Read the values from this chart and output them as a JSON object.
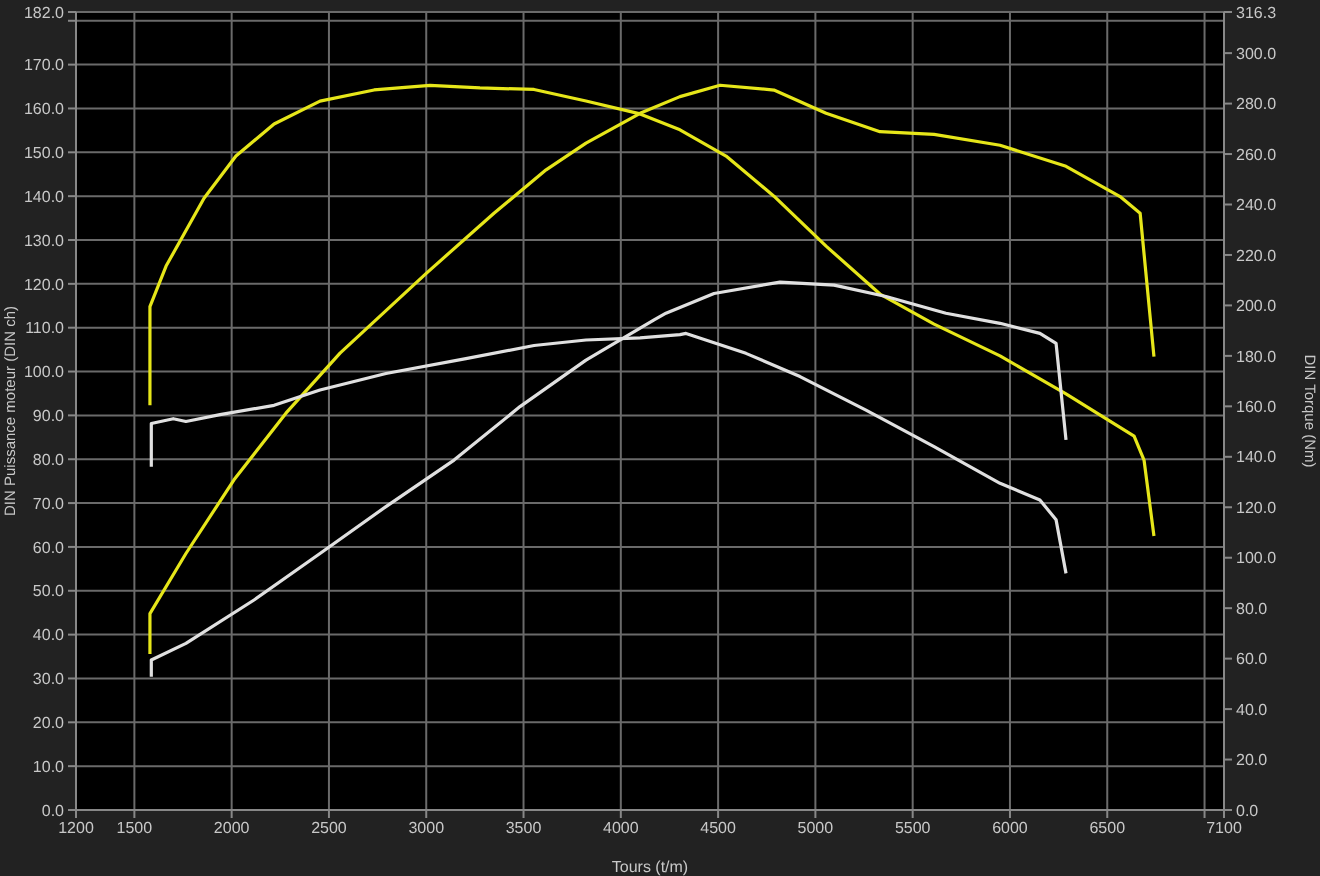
{
  "chart_data": {
    "type": "line",
    "xlabel": "Tours (t/m)",
    "ylabel": "DIN Puissance moteur (DIN ch)",
    "y2label": "DIN Torque (Nm)",
    "xlim": [
      1200,
      7100
    ],
    "xticks": [
      1200,
      1500,
      2000,
      2500,
      3000,
      3500,
      4000,
      4500,
      5000,
      5500,
      6000,
      6500,
      {
        "value": 7000,
        "label": null
      },
      7100
    ],
    "ylim": [
      0,
      182
    ],
    "yticks": [
      {
        "value": 0,
        "label": "0.0"
      },
      {
        "value": 10,
        "label": "10.0"
      },
      {
        "value": 20,
        "label": "20.0"
      },
      {
        "value": 30,
        "label": "30.0"
      },
      {
        "value": 40,
        "label": "40.0"
      },
      {
        "value": 50,
        "label": "50.0"
      },
      {
        "value": 60,
        "label": "60.0"
      },
      {
        "value": 70,
        "label": "70.0"
      },
      {
        "value": 80,
        "label": "80.0"
      },
      {
        "value": 90,
        "label": "90.0"
      },
      {
        "value": 100,
        "label": "100.0"
      },
      {
        "value": 110,
        "label": "110.0"
      },
      {
        "value": 120,
        "label": "120.0"
      },
      {
        "value": 130,
        "label": "130.0"
      },
      {
        "value": 140,
        "label": "140.0"
      },
      {
        "value": 150,
        "label": "150.0"
      },
      {
        "value": 160,
        "label": "160.0"
      },
      {
        "value": 170,
        "label": "170.0"
      },
      {
        "value": 180,
        "label": null
      },
      {
        "value": 182,
        "label": "182.0"
      }
    ],
    "y2lim": [
      0,
      316.3
    ],
    "y2ticks": [
      {
        "value": 0,
        "label": "0.0"
      },
      {
        "value": 20,
        "label": "20.0"
      },
      {
        "value": 40,
        "label": "40.0"
      },
      {
        "value": 60,
        "label": "60.0"
      },
      {
        "value": 80,
        "label": "80.0"
      },
      {
        "value": 100,
        "label": "100.0"
      },
      {
        "value": 120,
        "label": "120.0"
      },
      {
        "value": 140,
        "label": "140.0"
      },
      {
        "value": 160,
        "label": "160.0"
      },
      {
        "value": 180,
        "label": "180.0"
      },
      {
        "value": 200,
        "label": "200.0"
      },
      {
        "value": 220,
        "label": "220.0"
      },
      {
        "value": 240,
        "label": "240.0"
      },
      {
        "value": 260,
        "label": "260.0"
      },
      {
        "value": 280,
        "label": "280.0"
      },
      {
        "value": 300,
        "label": "300.0"
      },
      {
        "value": 316.3,
        "label": "316.3"
      }
    ],
    "grid": true,
    "series": [
      {
        "color": "#e6e619",
        "x": [
          1580,
          1580,
          1765,
          2012,
          2279,
          2557,
          3000,
          3348,
          3616,
          3821,
          4099,
          4304,
          4510,
          4787,
          5055,
          5332,
          5610,
          5949,
          6288,
          6566,
          6669,
          6740
        ],
        "values": [
          35.6,
          44.8,
          58.5,
          75.3,
          90.5,
          104.2,
          122.4,
          136.1,
          146,
          152.1,
          158.9,
          162.7,
          165.3,
          164.2,
          158.9,
          154.7,
          154.1,
          151.6,
          146.8,
          139.9,
          136.1,
          103.4
        ]
      },
      {
        "color": "#e6e619",
        "axis": "y2",
        "x": [
          1580,
          1580,
          1663,
          1858,
          2022,
          2218,
          2454,
          2732,
          3019,
          3276,
          3554,
          3821,
          4099,
          4304,
          4541,
          4787,
          5055,
          5332,
          5610,
          5949,
          6288,
          6638,
          6689,
          6740
        ],
        "values": [
          160.4,
          199.5,
          215.6,
          242.5,
          259.2,
          271.9,
          281,
          285.4,
          287.2,
          286.2,
          285.6,
          281,
          275.9,
          269.6,
          259.2,
          243.3,
          223.5,
          204.5,
          192.6,
          180,
          164.9,
          148.2,
          138.7,
          108.6
        ]
      },
      {
        "color": "#e0e0e0",
        "x": [
          1587,
          1587,
          1765,
          2115,
          2454,
          2793,
          3143,
          3482,
          3821,
          4171,
          4232,
          4479,
          4818,
          5096,
          5363,
          5671,
          5949,
          6154,
          6237,
          6288
        ],
        "values": [
          30.4,
          34.2,
          38,
          47.9,
          58.5,
          69.2,
          79.8,
          92,
          102.6,
          111.8,
          113.3,
          117.8,
          120.4,
          119.7,
          117.1,
          113.3,
          111,
          108.7,
          106.4,
          84.4
        ]
      },
      {
        "color": "#e0e0e0",
        "axis": "y2",
        "x": [
          1587,
          1587,
          1700,
          1765,
          1940,
          2218,
          2454,
          2793,
          3204,
          3554,
          3821,
          4099,
          4304,
          4335,
          4643,
          4921,
          5260,
          5610,
          5949,
          6154,
          6237,
          6288
        ],
        "values": [
          136.1,
          153.2,
          155.1,
          154,
          156.7,
          160.4,
          166.5,
          173,
          178.9,
          184.1,
          186.3,
          187.1,
          188.4,
          188.9,
          181,
          171.8,
          158.5,
          144,
          129.5,
          122.9,
          115,
          93.8
        ]
      }
    ]
  }
}
